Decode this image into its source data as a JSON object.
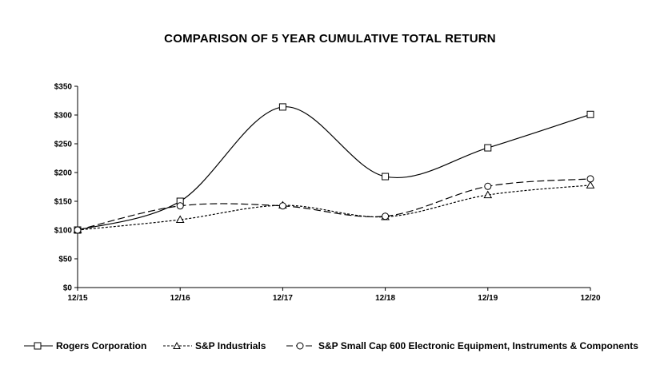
{
  "chart_data": {
    "type": "line",
    "title": "COMPARISON OF 5 YEAR CUMULATIVE TOTAL RETURN",
    "categories": [
      "12/15",
      "12/16",
      "12/17",
      "12/18",
      "12/19",
      "12/20"
    ],
    "ylim": [
      0,
      350
    ],
    "yticks": [
      0,
      50,
      100,
      150,
      200,
      250,
      300,
      350
    ],
    "ytick_labels": [
      "$0",
      "$50",
      "$100",
      "$150",
      "$200",
      "$250",
      "$300",
      "$350"
    ],
    "grid": false,
    "legend_position": "bottom",
    "series": [
      {
        "name": "Rogers Corporation",
        "values": [
          100,
          150,
          314,
          193,
          243,
          301
        ],
        "marker": "square",
        "dash": "solid",
        "color": "#000000"
      },
      {
        "name": "S&P Industrials",
        "values": [
          100,
          118,
          143,
          123,
          161,
          178
        ],
        "marker": "triangle",
        "dash": "short-dash",
        "color": "#000000"
      },
      {
        "name": "S&P Small Cap 600 Electronic Equipment, Instruments & Components",
        "values": [
          100,
          142,
          142,
          124,
          176,
          189
        ],
        "marker": "circle",
        "dash": "long-dash",
        "color": "#000000"
      }
    ]
  }
}
